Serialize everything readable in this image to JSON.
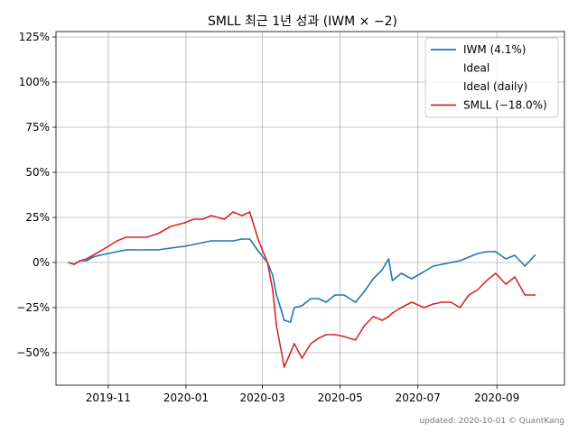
{
  "chart_data": {
    "type": "line",
    "title": "SMLL 최근 1년 성과 (IWM × −2)",
    "x_ticks": [
      "2019-11",
      "2020-01",
      "2020-03",
      "2020-05",
      "2020-07",
      "2020-09"
    ],
    "x_range": [
      "2019-09-21",
      "2020-10-24"
    ],
    "y_ticks": [
      {
        "value": 125,
        "label": "125%"
      },
      {
        "value": 100,
        "label": "100%"
      },
      {
        "value": 75,
        "label": "75%"
      },
      {
        "value": 50,
        "label": "50%"
      },
      {
        "value": 25,
        "label": "25%"
      },
      {
        "value": 0,
        "label": "0%"
      },
      {
        "value": -25,
        "label": "−25%"
      },
      {
        "value": -50,
        "label": "−50%"
      }
    ],
    "ylim": [
      -68,
      128
    ],
    "grid": true,
    "legend": {
      "placement": "top-right",
      "entries": [
        {
          "label": "IWM (4.1%)",
          "color": "#1f77b4"
        },
        {
          "label": "Ideal",
          "color": "none"
        },
        {
          "label": "Ideal (daily)",
          "color": "none"
        },
        {
          "label": "SMLL (−18.0%)",
          "color": "#d62728"
        }
      ]
    },
    "series": [
      {
        "name": "IWM (4.1%)",
        "color": "#1f77b4",
        "points": [
          [
            "2019-10-01",
            0
          ],
          [
            "2019-10-05",
            -1
          ],
          [
            "2019-10-10",
            1
          ],
          [
            "2019-10-15",
            1
          ],
          [
            "2019-10-20",
            3
          ],
          [
            "2019-10-25",
            4
          ],
          [
            "2019-11-01",
            5
          ],
          [
            "2019-11-08",
            6
          ],
          [
            "2019-11-15",
            7
          ],
          [
            "2019-11-22",
            7
          ],
          [
            "2019-12-01",
            7
          ],
          [
            "2019-12-10",
            7
          ],
          [
            "2019-12-20",
            8
          ],
          [
            "2019-12-31",
            9
          ],
          [
            "2020-01-07",
            10
          ],
          [
            "2020-01-14",
            11
          ],
          [
            "2020-01-21",
            12
          ],
          [
            "2020-01-31",
            12
          ],
          [
            "2020-02-07",
            12
          ],
          [
            "2020-02-14",
            13
          ],
          [
            "2020-02-20",
            13
          ],
          [
            "2020-02-27",
            6
          ],
          [
            "2020-03-05",
            0
          ],
          [
            "2020-03-09",
            -7
          ],
          [
            "2020-03-12",
            -18
          ],
          [
            "2020-03-16",
            -27
          ],
          [
            "2020-03-18",
            -32
          ],
          [
            "2020-03-23",
            -33
          ],
          [
            "2020-03-26",
            -25
          ],
          [
            "2020-04-01",
            -24
          ],
          [
            "2020-04-08",
            -20
          ],
          [
            "2020-04-14",
            -20
          ],
          [
            "2020-04-20",
            -22
          ],
          [
            "2020-04-27",
            -18
          ],
          [
            "2020-05-04",
            -18
          ],
          [
            "2020-05-13",
            -22
          ],
          [
            "2020-05-20",
            -16
          ],
          [
            "2020-05-27",
            -9
          ],
          [
            "2020-06-03",
            -4
          ],
          [
            "2020-06-08",
            2
          ],
          [
            "2020-06-11",
            -10
          ],
          [
            "2020-06-18",
            -6
          ],
          [
            "2020-06-26",
            -9
          ],
          [
            "2020-07-06",
            -5
          ],
          [
            "2020-07-13",
            -2
          ],
          [
            "2020-07-20",
            -1
          ],
          [
            "2020-07-27",
            0
          ],
          [
            "2020-08-03",
            1
          ],
          [
            "2020-08-10",
            3
          ],
          [
            "2020-08-17",
            5
          ],
          [
            "2020-08-24",
            6
          ],
          [
            "2020-08-31",
            6
          ],
          [
            "2020-09-08",
            2
          ],
          [
            "2020-09-15",
            4
          ],
          [
            "2020-09-23",
            -2
          ],
          [
            "2020-10-01",
            4.1
          ]
        ]
      },
      {
        "name": "SMLL (−18.0%)",
        "color": "#d62728",
        "points": [
          [
            "2019-10-01",
            0
          ],
          [
            "2019-10-05",
            -1
          ],
          [
            "2019-10-10",
            1
          ],
          [
            "2019-10-15",
            2
          ],
          [
            "2019-10-20",
            4
          ],
          [
            "2019-10-25",
            6
          ],
          [
            "2019-11-01",
            9
          ],
          [
            "2019-11-08",
            12
          ],
          [
            "2019-11-15",
            14
          ],
          [
            "2019-11-22",
            14
          ],
          [
            "2019-12-01",
            14
          ],
          [
            "2019-12-10",
            16
          ],
          [
            "2019-12-20",
            20
          ],
          [
            "2019-12-31",
            22
          ],
          [
            "2020-01-07",
            24
          ],
          [
            "2020-01-14",
            24
          ],
          [
            "2020-01-21",
            26
          ],
          [
            "2020-01-31",
            24
          ],
          [
            "2020-02-07",
            28
          ],
          [
            "2020-02-14",
            26
          ],
          [
            "2020-02-20",
            28
          ],
          [
            "2020-02-27",
            12
          ],
          [
            "2020-03-05",
            0
          ],
          [
            "2020-03-09",
            -15
          ],
          [
            "2020-03-12",
            -35
          ],
          [
            "2020-03-16",
            -50
          ],
          [
            "2020-03-18",
            -58
          ],
          [
            "2020-03-23",
            -50
          ],
          [
            "2020-03-26",
            -45
          ],
          [
            "2020-04-01",
            -53
          ],
          [
            "2020-04-08",
            -45
          ],
          [
            "2020-04-14",
            -42
          ],
          [
            "2020-04-20",
            -40
          ],
          [
            "2020-04-27",
            -40
          ],
          [
            "2020-05-04",
            -41
          ],
          [
            "2020-05-13",
            -43
          ],
          [
            "2020-05-20",
            -35
          ],
          [
            "2020-05-27",
            -30
          ],
          [
            "2020-06-03",
            -32
          ],
          [
            "2020-06-08",
            -30
          ],
          [
            "2020-06-11",
            -28
          ],
          [
            "2020-06-18",
            -25
          ],
          [
            "2020-06-26",
            -22
          ],
          [
            "2020-07-06",
            -25
          ],
          [
            "2020-07-13",
            -23
          ],
          [
            "2020-07-20",
            -22
          ],
          [
            "2020-07-27",
            -22
          ],
          [
            "2020-08-03",
            -25
          ],
          [
            "2020-08-10",
            -18
          ],
          [
            "2020-08-17",
            -15
          ],
          [
            "2020-08-24",
            -10
          ],
          [
            "2020-08-31",
            -6
          ],
          [
            "2020-09-08",
            -12
          ],
          [
            "2020-09-15",
            -8
          ],
          [
            "2020-09-23",
            -18
          ],
          [
            "2020-10-01",
            -18
          ]
        ]
      }
    ]
  },
  "footer": {
    "text": "updated: 2020-10-01 © QuantKang"
  }
}
